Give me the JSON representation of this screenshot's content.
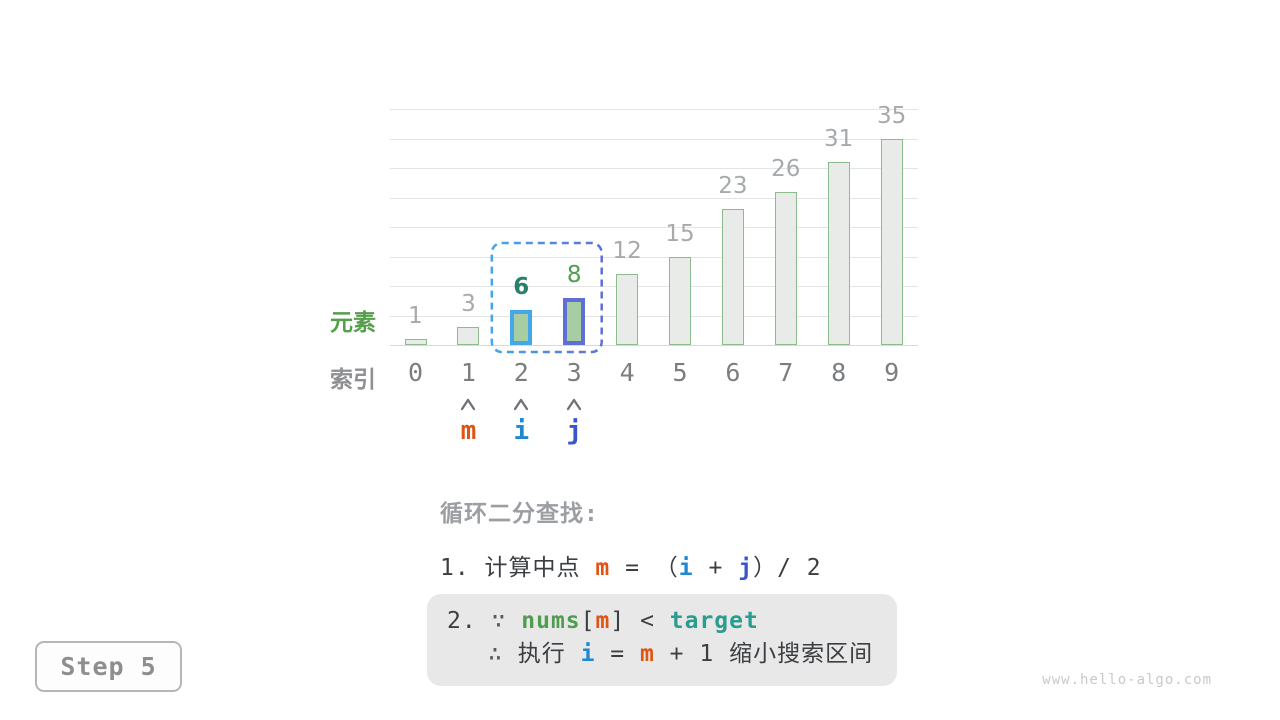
{
  "page": {
    "background": "#ffffff",
    "watermark": "www.hello-algo.com"
  },
  "step_badge": {
    "label": "Step 5"
  },
  "chart_data": {
    "type": "bar",
    "title": "",
    "y_axis_label": "元素",
    "x_axis_label": "索引",
    "categories": [
      "0",
      "1",
      "2",
      "3",
      "4",
      "5",
      "6",
      "7",
      "8",
      "9"
    ],
    "values": [
      1,
      3,
      6,
      8,
      12,
      15,
      23,
      26,
      31,
      35
    ],
    "ylim": [
      0,
      40
    ],
    "grid_step": 5,
    "grid": true,
    "legend": false,
    "bars": {
      "default_fill": "#e9ebe8",
      "default_stroke": "#8cbc8c",
      "highlight_fill": "#a9cda3",
      "highlights": [
        {
          "index": 2,
          "stroke": "#44a7e8"
        },
        {
          "index": 3,
          "stroke": "#5f6fd6"
        }
      ]
    },
    "value_labels": {
      "default_color": "#a6aaad",
      "overrides": [
        {
          "index": 2,
          "color": "#26806d",
          "bold": true
        },
        {
          "index": 3,
          "color": "#4f9e4f",
          "bold": false
        }
      ]
    },
    "selection_box": {
      "from_index": 2,
      "to_index": 3,
      "color_left": "#44a7e8",
      "color_right": "#5f6fd6"
    },
    "pointers": [
      {
        "label": "m",
        "index": 1,
        "color": "#e25414"
      },
      {
        "label": "i",
        "index": 2,
        "color": "#1e88d0"
      },
      {
        "label": "j",
        "index": 3,
        "color": "#3a55cc"
      }
    ]
  },
  "annotation": {
    "title": "循环二分查找:",
    "line1": [
      {
        "t": "1. 计算中点 ",
        "s": "plain"
      },
      {
        "t": "m",
        "s": "m"
      },
      {
        "t": " = （",
        "s": "plain"
      },
      {
        "t": "i",
        "s": "i"
      },
      {
        "t": " + ",
        "s": "plain"
      },
      {
        "t": "j",
        "s": "j"
      },
      {
        "t": "）/ 2",
        "s": "plain"
      }
    ],
    "box": {
      "background": "#e8e8e8",
      "lines": [
        [
          {
            "t": "2. ",
            "s": "plain"
          },
          {
            "t": "∵ ",
            "s": "dim"
          },
          {
            "t": "nums",
            "s": "nums"
          },
          {
            "t": "[",
            "s": "plain"
          },
          {
            "t": "m",
            "s": "m"
          },
          {
            "t": "]",
            "s": "plain"
          },
          {
            "t": " < ",
            "s": "plain"
          },
          {
            "t": "target",
            "s": "target"
          }
        ],
        [
          {
            "t": "∴ ",
            "s": "dim"
          },
          {
            "t": "执行 ",
            "s": "plain"
          },
          {
            "t": "i",
            "s": "i"
          },
          {
            "t": " = ",
            "s": "plain"
          },
          {
            "t": "m",
            "s": "m"
          },
          {
            "t": " + 1 缩小搜索区间",
            "s": "plain"
          }
        ]
      ]
    }
  },
  "colors": {
    "accent_orange": "#e25414",
    "accent_blue": "#1e88d0",
    "accent_indigo": "#3a55cc",
    "accent_green": "#4f9e4f",
    "accent_teal": "#2a9d8f",
    "gridline": "#e3e5e5"
  }
}
